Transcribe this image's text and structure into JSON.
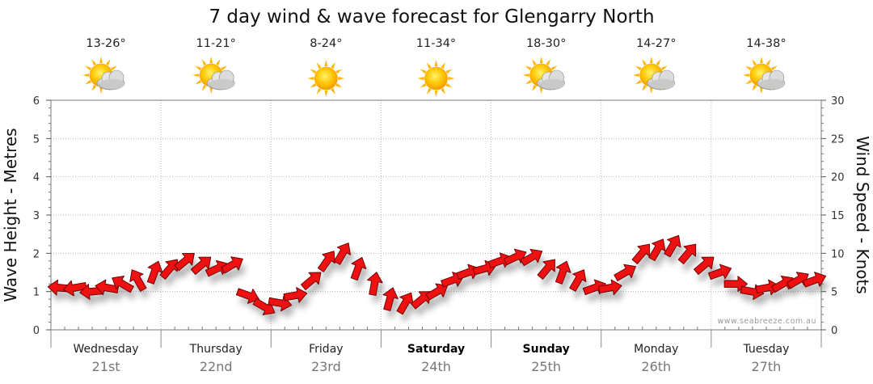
{
  "chart_data": {
    "type": "line",
    "title": "7 day wind & wave forecast for Glengarry North",
    "ylabel_left": "Wave Height - Metres",
    "ylabel_right": "Wind Speed - Knots",
    "ylim_left": [
      0,
      6
    ],
    "ylim_right": [
      0,
      30
    ],
    "yticks_left": [
      "0",
      "1",
      "2",
      "3",
      "4",
      "5",
      "6"
    ],
    "yticks_right": [
      "0",
      "5",
      "10",
      "15",
      "20",
      "25",
      "30"
    ],
    "grid": true,
    "watermark": "www.seabreeze.com.au",
    "days": [
      {
        "day": "Wednesday",
        "date": "21st",
        "temp": "13-26°",
        "weather": "partly-cloudy",
        "bold": false
      },
      {
        "day": "Thursday",
        "date": "22nd",
        "temp": "11-21°",
        "weather": "partly-cloudy",
        "bold": false
      },
      {
        "day": "Friday",
        "date": "23rd",
        "temp": "8-24°",
        "weather": "sunny",
        "bold": false
      },
      {
        "day": "Saturday",
        "date": "24th",
        "temp": "11-34°",
        "weather": "sunny",
        "bold": true
      },
      {
        "day": "Sunday",
        "date": "25th",
        "temp": "18-30°",
        "weather": "partly-cloudy",
        "bold": true
      },
      {
        "day": "Monday",
        "date": "26th",
        "temp": "14-27°",
        "weather": "partly-cloudy",
        "bold": false
      },
      {
        "day": "Tuesday",
        "date": "27th",
        "temp": "14-38°",
        "weather": "partly-cloudy",
        "bold": false
      }
    ],
    "series": [
      {
        "unit": "knots",
        "color": "#ee1111",
        "x_days": [
          0.0,
          0.14,
          0.29,
          0.43,
          0.57,
          0.71,
          0.86,
          1.0,
          1.14,
          1.29,
          1.43,
          1.57,
          1.71,
          1.86,
          2.0,
          2.14,
          2.29,
          2.43,
          2.57,
          2.71,
          2.86,
          3.0,
          3.14,
          3.29,
          3.43,
          3.57,
          3.71,
          3.86,
          4.0,
          4.14,
          4.29,
          4.43,
          4.57,
          4.71,
          4.86,
          5.0,
          5.14,
          5.29,
          5.43,
          5.57,
          5.71,
          5.86,
          6.0,
          6.14,
          6.29,
          6.43,
          6.57,
          6.71,
          6.86
        ],
        "values": [
          5.5,
          5.5,
          5.0,
          5.5,
          6.0,
          6.5,
          7.5,
          8.0,
          9.0,
          8.5,
          8.0,
          8.5,
          4.5,
          3.0,
          3.5,
          4.5,
          6.5,
          9.0,
          10.0,
          8.0,
          6.0,
          4.0,
          3.5,
          4.0,
          5.0,
          6.5,
          7.5,
          8.0,
          9.0,
          9.5,
          9.5,
          8.0,
          7.5,
          6.5,
          5.5,
          5.5,
          7.5,
          10.0,
          10.5,
          11.0,
          10.0,
          8.5,
          7.5,
          6.0,
          5.0,
          5.5,
          6.0,
          6.5,
          6.5
        ],
        "directions_deg": [
          95,
          80,
          85,
          100,
          120,
          150,
          200,
          220,
          230,
          230,
          245,
          240,
          290,
          300,
          280,
          260,
          230,
          215,
          210,
          200,
          190,
          195,
          210,
          230,
          240,
          250,
          250,
          255,
          250,
          245,
          240,
          220,
          200,
          210,
          250,
          260,
          240,
          220,
          210,
          210,
          220,
          230,
          250,
          270,
          280,
          260,
          240,
          240,
          250
        ]
      }
    ]
  }
}
